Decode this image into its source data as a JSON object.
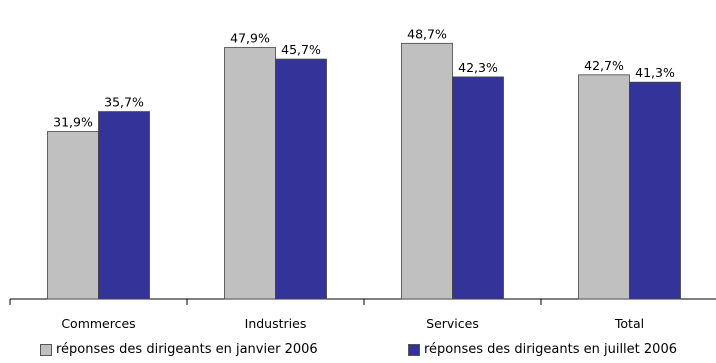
{
  "chart_data": {
    "type": "bar",
    "categories": [
      "Commerces",
      "Industries",
      "Services",
      "Total"
    ],
    "series": [
      {
        "name": "réponses des dirigeants en janvier 2006",
        "values": [
          31.9,
          47.9,
          48.7,
          42.7
        ],
        "labels": [
          "31,9%",
          "47,9%",
          "48,7%",
          "42,7%"
        ],
        "color": "#c0c0c0"
      },
      {
        "name": "réponses des dirigeants en juillet 2006",
        "values": [
          35.7,
          45.7,
          42.3,
          41.3
        ],
        "labels": [
          "35,7%",
          "45,7%",
          "42,3%",
          "41,3%"
        ],
        "color": "#333399"
      }
    ],
    "ylim": [
      0,
      50
    ],
    "grid": false,
    "legend_position": "bottom"
  }
}
